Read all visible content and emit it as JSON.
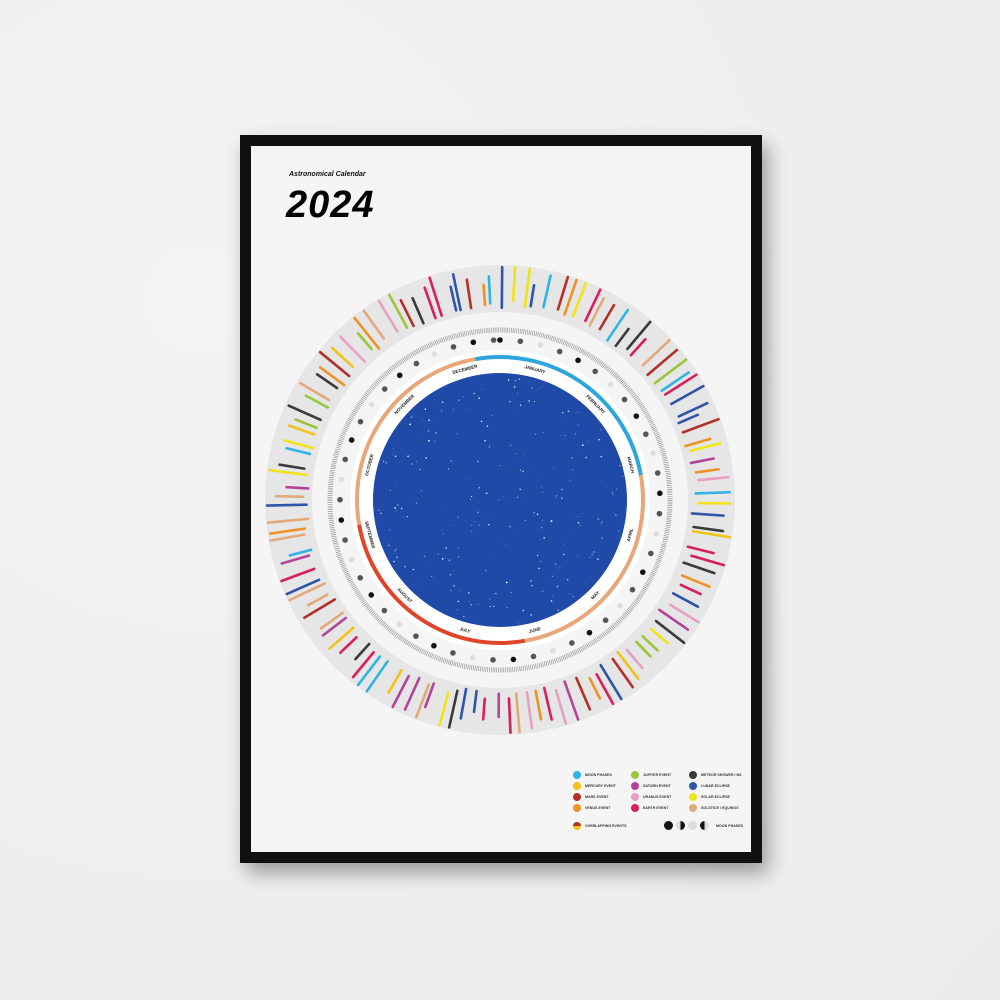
{
  "poster": {
    "subtitle": "Astronomical Calendar",
    "year": "2024"
  },
  "months": [
    "JANUARY",
    "FEBRUARY",
    "MARCH",
    "APRIL",
    "MAY",
    "JUNE",
    "JULY",
    "AUGUST",
    "SEPTEMBER",
    "OCTOBER",
    "NOVEMBER",
    "DECEMBER"
  ],
  "season_colors": {
    "winter": "#2ea6dd",
    "spring": "#e8a77a",
    "summer": "#e0452a",
    "autumn": "#e8a77a"
  },
  "sky_color": "#1f4aa8",
  "legend": {
    "items": [
      {
        "label": "MOON PHASES",
        "color": "#2fb4e6"
      },
      {
        "label": "JUPITER EVENT",
        "color": "#9cc63a"
      },
      {
        "label": "METEOR SHOWER / NS",
        "color": "#3a3a3a"
      },
      {
        "label": "MERCURY EVENT",
        "color": "#f2c11a"
      },
      {
        "label": "SATURN EVENT",
        "color": "#b2459a"
      },
      {
        "label": "LUNAR ECLIPSE",
        "color": "#2e55a8"
      },
      {
        "label": "MARS EVENT",
        "color": "#b3302a"
      },
      {
        "label": "URANUS EVENT",
        "color": "#e7a0c3"
      },
      {
        "label": "SOLAR ECLIPSE",
        "color": "#f0e419"
      },
      {
        "label": "VENUS EVENT",
        "color": "#ef9225"
      },
      {
        "label": "EARTH EVENT",
        "color": "#d81f5c"
      },
      {
        "label": "SOLSTICE / EQUINOX",
        "color": "#e2a97a"
      }
    ],
    "overlapping_label": "OVERLAPPING EVENTS",
    "moon_phases_label": "MOON PHASES"
  }
}
